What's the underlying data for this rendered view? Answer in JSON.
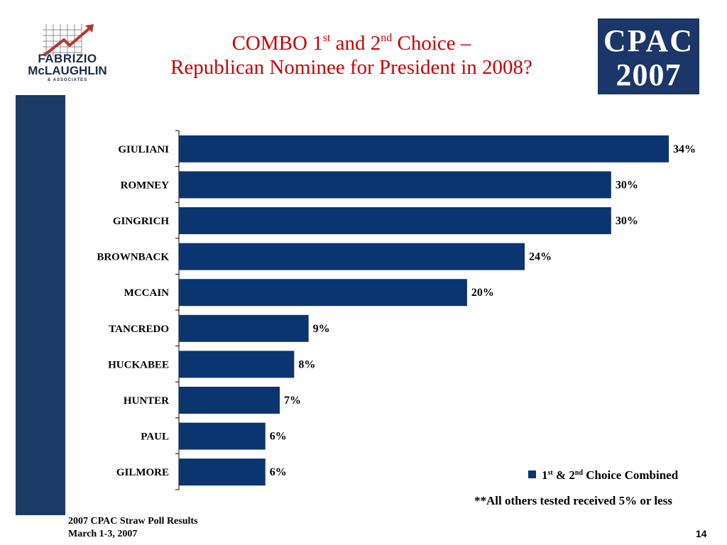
{
  "logo_left": {
    "line1": "FABRIZIO",
    "line2": "McLAUGHLIN",
    "line3": "& ASSOCIATES",
    "icon": "rising-arrow-grid-icon"
  },
  "title": {
    "line1_part1": "COMBO 1",
    "line1_sup1": "st",
    "line1_part2": " and 2",
    "line1_sup2": "nd",
    "line1_part3": " Choice –",
    "line2": "Republican Nominee for President in 2008?"
  },
  "cpac_logo": {
    "line1": "CPAC",
    "line2": "2007",
    "icon": "flag-zero-icon"
  },
  "chart_data": {
    "type": "bar",
    "orientation": "horizontal",
    "categories": [
      "GIULIANI",
      "ROMNEY",
      "GINGRICH",
      "BROWNBACK",
      "MCCAIN",
      "TANCREDO",
      "HUCKABEE",
      "HUNTER",
      "PAUL",
      "GILMORE"
    ],
    "series": [
      {
        "name": "1st & 2nd Choice Combined",
        "values": [
          34,
          30,
          30,
          24,
          20,
          9,
          8,
          7,
          6,
          6
        ],
        "labels": [
          "34%",
          "30%",
          "30%",
          "24%",
          "20%",
          "9%",
          "8%",
          "7%",
          "6%",
          "6%"
        ]
      }
    ],
    "xlim": [
      0,
      34
    ],
    "grid": false,
    "legend_position": "bottom-right"
  },
  "legend": {
    "part1": "1",
    "sup1": "st",
    "part2": " & 2",
    "sup2": "nd",
    "part3": " Choice Combined"
  },
  "note": "**All others tested received 5% or less",
  "footer": {
    "line1": "2007 CPAC Straw Poll Results",
    "line2": "March 1-3, 2007"
  },
  "page_number": "14",
  "colors": {
    "bar": "#0a3570",
    "title": "#cc0000",
    "sidebar": "#1b3a66"
  }
}
